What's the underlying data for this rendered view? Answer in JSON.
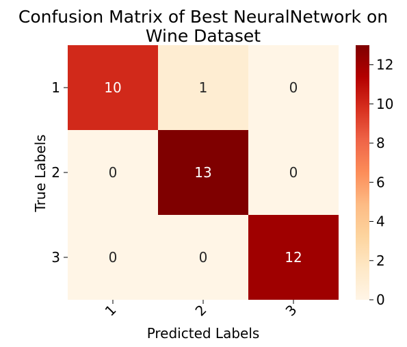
{
  "chart_data": {
    "type": "heatmap",
    "title_lines": [
      "Confusion Matrix of Best NeuralNetwork on",
      "Wine Dataset"
    ],
    "xlabel": "Predicted Labels",
    "ylabel": "True Labels",
    "x_categories": [
      "1",
      "2",
      "3"
    ],
    "y_categories": [
      "1",
      "2",
      "3"
    ],
    "values": [
      [
        10,
        1,
        0
      ],
      [
        0,
        13,
        0
      ],
      [
        0,
        0,
        12
      ]
    ],
    "colorbar": {
      "range": [
        0,
        13
      ],
      "ticks": [
        "0",
        "2",
        "4",
        "6",
        "8",
        "10",
        "12"
      ],
      "colormap": "OrRd"
    },
    "annotation_colors": {
      "light": "#ffffff",
      "dark": "#262626"
    }
  }
}
